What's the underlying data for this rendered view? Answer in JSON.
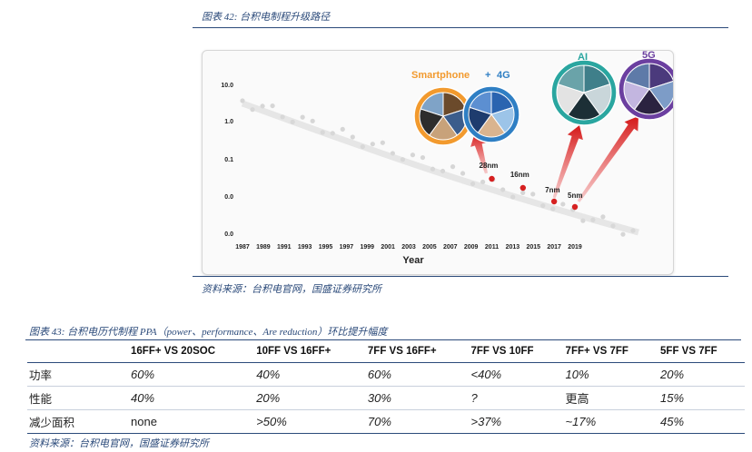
{
  "figure42": {
    "caption": "图表 42:  台积电制程升级路径",
    "source": "资料来源：台积电官网，国盛证券研究所",
    "chart_data": {
      "type": "scatter",
      "xlabel": "Year",
      "ylabel": "",
      "x_ticks": [
        "1987",
        "1989",
        "1991",
        "1993",
        "1995",
        "1997",
        "1999",
        "2001",
        "2003",
        "2005",
        "2007",
        "2009",
        "2011",
        "2013",
        "2015",
        "2017",
        "2019"
      ],
      "y_ticks": [
        "10.0",
        "1.0",
        "0.1",
        "0.0",
        "0.0"
      ],
      "series": [
        {
          "values": [
            {
              "x": 2011,
              "label": "28nm"
            },
            {
              "x": 2014,
              "label": "16nm"
            },
            {
              "x": 2017,
              "label": "7nm"
            },
            {
              "x": 2019,
              "label": "5nm"
            }
          ]
        }
      ],
      "annotations": [
        "Smartphone",
        "+",
        "4G",
        "AI",
        "5G"
      ],
      "colors": {
        "orange": "#f29a2e",
        "blue": "#2f7fc4",
        "teal": "#2aa6a0",
        "purple": "#6b3fa0",
        "red": "#d62020"
      }
    }
  },
  "figure43": {
    "caption": "图表 43:  台积电历代制程 PPA（power、performance、Are reduction）环比提升幅度",
    "source": "资料来源：台积电官网，国盛证券研究所",
    "headers": [
      "",
      "16FF+ VS 20SOC",
      "10FF VS 16FF+",
      "7FF VS 16FF+",
      "7FF VS 10FF",
      "7FF+ VS 7FF",
      "5FF VS 7FF"
    ],
    "rows": [
      {
        "label": "功率",
        "cells": [
          "60%",
          "40%",
          "60%",
          "<40%",
          "10%",
          "20%"
        ]
      },
      {
        "label": "性能",
        "cells": [
          "40%",
          "20%",
          "30%",
          "?",
          "更高",
          "15%"
        ]
      },
      {
        "label": "减少面积",
        "cells": [
          "none",
          ">50%",
          "70%",
          ">37%",
          "~17%",
          "45%"
        ]
      }
    ]
  }
}
